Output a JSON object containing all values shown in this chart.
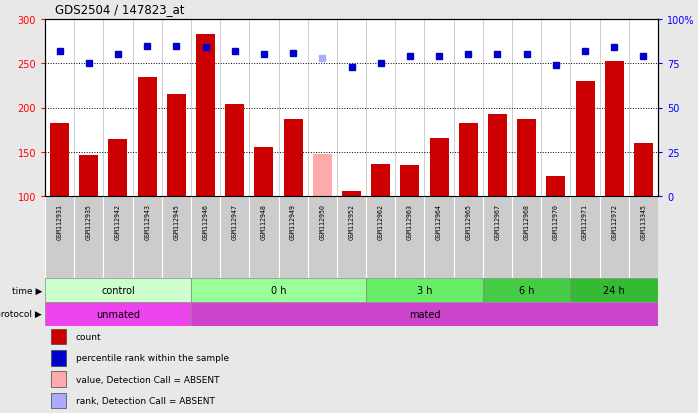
{
  "title": "GDS2504 / 147823_at",
  "samples": [
    "GSM112931",
    "GSM112935",
    "GSM112942",
    "GSM112943",
    "GSM112945",
    "GSM112946",
    "GSM112947",
    "GSM112948",
    "GSM112949",
    "GSM112950",
    "GSM112952",
    "GSM112962",
    "GSM112963",
    "GSM112964",
    "GSM112965",
    "GSM112967",
    "GSM112968",
    "GSM112970",
    "GSM112971",
    "GSM112972",
    "GSM113345"
  ],
  "bar_values": [
    182,
    146,
    164,
    235,
    215,
    283,
    204,
    155,
    187,
    148,
    106,
    136,
    135,
    165,
    182,
    193,
    187,
    123,
    230,
    253,
    160
  ],
  "bar_absent": [
    false,
    false,
    false,
    false,
    false,
    false,
    false,
    false,
    false,
    true,
    false,
    false,
    false,
    false,
    false,
    false,
    false,
    false,
    false,
    false,
    false
  ],
  "dot_values": [
    82,
    75,
    80,
    85,
    85,
    84,
    82,
    80,
    81,
    78,
    73,
    75,
    79,
    79,
    80,
    80,
    80,
    74,
    82,
    84,
    79
  ],
  "dot_absent": [
    false,
    false,
    false,
    false,
    false,
    false,
    false,
    false,
    false,
    true,
    false,
    false,
    false,
    false,
    false,
    false,
    false,
    false,
    false,
    false,
    false
  ],
  "ylim_left": [
    100,
    300
  ],
  "ylim_right": [
    0,
    100
  ],
  "yticks_left": [
    100,
    150,
    200,
    250,
    300
  ],
  "yticks_right": [
    0,
    25,
    50,
    75,
    100
  ],
  "ytick_labels_right": [
    "0",
    "25",
    "50",
    "75",
    "100%"
  ],
  "bar_color": "#cc0000",
  "bar_absent_color": "#ffaaaa",
  "dot_color": "#0000cc",
  "dot_absent_color": "#aaaaff",
  "bg_color": "#e8e8e8",
  "plot_bg_color": "#ffffff",
  "sample_box_color": "#cccccc",
  "time_groups": [
    {
      "label": "control",
      "start": 0,
      "end": 5,
      "color": "#ccffcc"
    },
    {
      "label": "0 h",
      "start": 5,
      "end": 11,
      "color": "#99ff99"
    },
    {
      "label": "3 h",
      "start": 11,
      "end": 15,
      "color": "#66ee66"
    },
    {
      "label": "6 h",
      "start": 15,
      "end": 18,
      "color": "#44cc44"
    },
    {
      "label": "24 h",
      "start": 18,
      "end": 21,
      "color": "#33bb33"
    }
  ],
  "protocol_groups": [
    {
      "label": "unmated",
      "start": 0,
      "end": 5,
      "color": "#ee44ee"
    },
    {
      "label": "mated",
      "start": 5,
      "end": 21,
      "color": "#cc44cc"
    }
  ],
  "legend_items": [
    {
      "label": "count",
      "color": "#cc0000"
    },
    {
      "label": "percentile rank within the sample",
      "color": "#0000cc"
    },
    {
      "label": "value, Detection Call = ABSENT",
      "color": "#ffaaaa"
    },
    {
      "label": "rank, Detection Call = ABSENT",
      "color": "#aaaaff"
    }
  ]
}
